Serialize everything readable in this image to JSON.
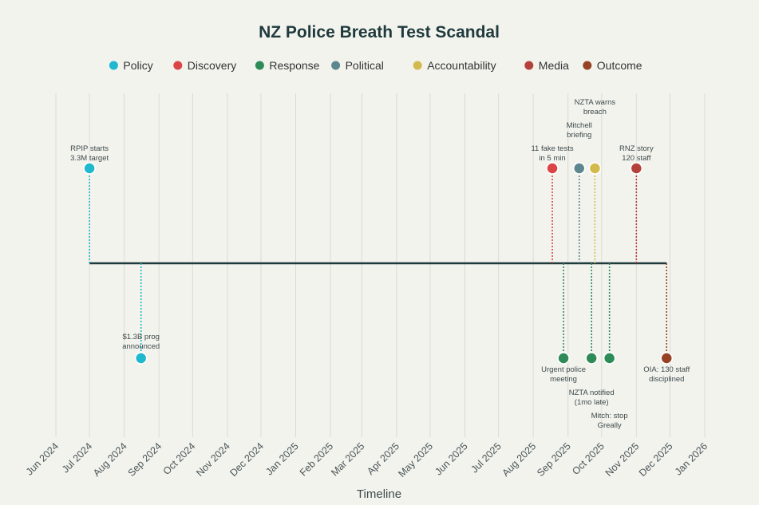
{
  "chart_data": {
    "type": "timeline",
    "title": "NZ Police Breath Test Scandal",
    "xlabel": "Timeline",
    "xlim": [
      "2024-06-01",
      "2026-01-01"
    ],
    "grid": true,
    "legend_position": "top",
    "categories": [
      {
        "name": "Policy",
        "color": "#1fb8cd"
      },
      {
        "name": "Discovery",
        "color": "#db4545"
      },
      {
        "name": "Response",
        "color": "#2e8b57"
      },
      {
        "name": "Political",
        "color": "#5d878f"
      },
      {
        "name": "Accountability",
        "color": "#d2ba4c"
      },
      {
        "name": "Media",
        "color": "#b4413c"
      },
      {
        "name": "Outcome",
        "color": "#964325"
      }
    ],
    "ticks": [
      "Jun 2024",
      "Jul 2024",
      "Aug 2024",
      "Sep 2024",
      "Oct 2024",
      "Nov 2024",
      "Dec 2024",
      "Jan 2025",
      "Feb 2025",
      "Mar 2025",
      "Apr 2025",
      "May 2025",
      "Jun 2025",
      "Jul 2025",
      "Aug 2025",
      "Sep 2025",
      "Oct 2025",
      "Nov 2025",
      "Dec 2025",
      "Jan 2026"
    ],
    "events": [
      {
        "date": "2024-07-01",
        "category": "Policy",
        "side": "above",
        "label": [
          "RPIP starts",
          "3.3M target"
        ]
      },
      {
        "date": "2024-08-16",
        "category": "Policy",
        "side": "below",
        "label": [
          "$1.3B prog",
          "announced"
        ]
      },
      {
        "date": "2025-08-18",
        "category": "Discovery",
        "side": "above",
        "label": [
          "11 fake tests",
          "in 5 min"
        ]
      },
      {
        "date": "2025-08-28",
        "category": "Response",
        "side": "below",
        "label": [
          "Urgent police",
          "meeting"
        ]
      },
      {
        "date": "2025-09-11",
        "category": "Political",
        "side": "above",
        "label": [
          "Mitchell",
          "briefing"
        ]
      },
      {
        "date": "2025-09-22",
        "category": "Response",
        "side": "below",
        "label": [
          "NZTA notified",
          "(1mo late)"
        ]
      },
      {
        "date": "2025-09-25",
        "category": "Accountability",
        "side": "above",
        "label": [
          "NZTA warns",
          "breach"
        ]
      },
      {
        "date": "2025-10-08",
        "category": "Response",
        "side": "below",
        "label": [
          "Mitch: stop",
          "Greally"
        ]
      },
      {
        "date": "2025-11-01",
        "category": "Media",
        "side": "above",
        "label": [
          "RNZ story",
          "120 staff"
        ]
      },
      {
        "date": "2025-11-28",
        "category": "Outcome",
        "side": "below",
        "label": [
          "OIA: 130 staff",
          "disciplined"
        ]
      }
    ]
  }
}
